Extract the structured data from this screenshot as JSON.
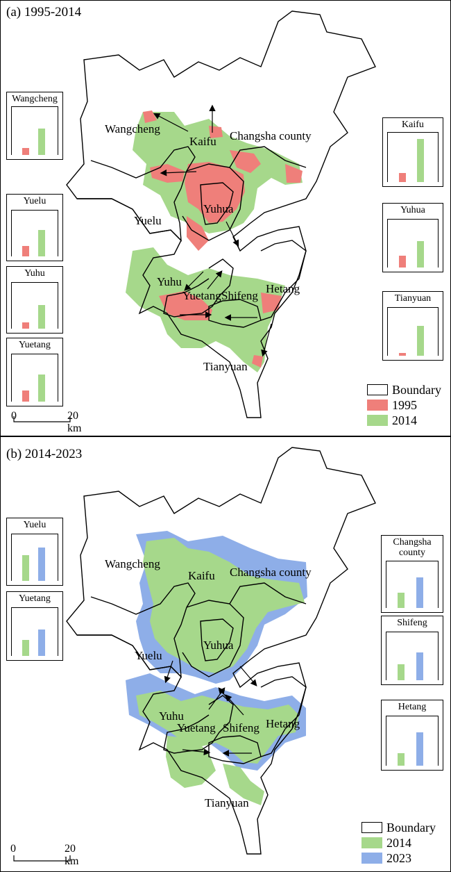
{
  "colors": {
    "c1995": "#ef7f7a",
    "c2014": "#a6d88b",
    "c2023": "#8eaee8"
  },
  "panel_a": {
    "title": "(a) 1995-2014",
    "places": {
      "wangcheng": "Wangcheng",
      "kaifu": "Kaifu",
      "changsha_county": "Changsha county",
      "yuhua": "Yuhua",
      "yuelu": "Yuelu",
      "yuhu": "Yuhu",
      "yuetang": "Yuetang",
      "shifeng": "Shifeng",
      "hetang": "Hetang",
      "tianyuan": "Tianyuan"
    },
    "insets": [
      {
        "label": "Wangcheng",
        "values": [
          0.15,
          0.55
        ]
      },
      {
        "label": "Yuelu",
        "values": [
          0.22,
          0.58
        ]
      },
      {
        "label": "Yuhu",
        "values": [
          0.14,
          0.52
        ]
      },
      {
        "label": "Yuetang",
        "values": [
          0.24,
          0.58
        ]
      },
      {
        "label": "Kaifu",
        "values": [
          0.18,
          0.88
        ]
      },
      {
        "label": "Yuhua",
        "values": [
          0.25,
          0.55
        ]
      },
      {
        "label": "Tianyuan",
        "values": [
          0.06,
          0.62
        ]
      }
    ],
    "legend": [
      "Boundary",
      "1995",
      "2014"
    ],
    "scale": {
      "zero": "0",
      "dist": "20 km"
    }
  },
  "panel_b": {
    "title": "(b) 2014-2023",
    "places": {
      "wangcheng": "Wangcheng",
      "kaifu": "Kaifu",
      "changsha_county": "Changsha county",
      "yuhua": "Yuhua",
      "yuelu": "Yuelu",
      "yuhu": "Yuhu",
      "yuetang": "Yuetang",
      "shifeng": "Shifeng",
      "hetang": "Hetang",
      "tianyuan": "Tianyuan"
    },
    "insets": [
      {
        "label": "Yuelu",
        "values": [
          0.55,
          0.72
        ]
      },
      {
        "label": "Yuetang",
        "values": [
          0.33,
          0.55
        ]
      },
      {
        "label": "Changsha county",
        "values": [
          0.33,
          0.66
        ]
      },
      {
        "label": "Shifeng",
        "values": [
          0.33,
          0.58
        ]
      },
      {
        "label": "Hetang",
        "values": [
          0.26,
          0.68
        ]
      }
    ],
    "legend": [
      "Boundary",
      "2014",
      "2023"
    ],
    "scale": {
      "zero": "0",
      "dist": "20 km"
    }
  }
}
